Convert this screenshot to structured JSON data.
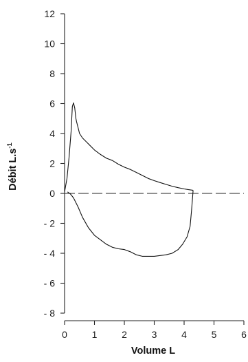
{
  "chart_data": {
    "type": "line",
    "xlabel": "Volume L",
    "ylabel_main": "Débit L.s",
    "ylabel_sup": "-1",
    "xlim": [
      0,
      6
    ],
    "ylim": [
      -8,
      12
    ],
    "xticks": [
      0,
      1,
      2,
      3,
      4,
      5,
      6
    ],
    "yticks": [
      12,
      10,
      8,
      6,
      4,
      2,
      0,
      -2,
      -4,
      -6,
      -8
    ],
    "ytick_labels": [
      "12",
      "10",
      "8",
      "6",
      "4",
      "2",
      "0",
      "- 2",
      "- 4",
      "- 6",
      "- 8"
    ],
    "zero_reference": {
      "y": 0,
      "style": "dashed"
    },
    "grid": false,
    "legend": "none",
    "series": [
      {
        "role": "expiratory",
        "x": [
          0,
          0.08,
          0.15,
          0.22,
          0.26,
          0.3,
          0.34,
          0.38,
          0.4,
          0.45,
          0.5,
          0.6,
          0.8,
          1.0,
          1.2,
          1.4,
          1.6,
          1.8,
          2.0,
          2.2,
          2.4,
          2.6,
          2.8,
          3.0,
          3.2,
          3.4,
          3.6,
          3.8,
          4.0,
          4.15,
          4.25,
          4.3
        ],
        "y": [
          0.1,
          1.0,
          2.4,
          4.2,
          5.8,
          6.05,
          5.7,
          5.0,
          4.8,
          4.4,
          4.0,
          3.7,
          3.3,
          2.9,
          2.6,
          2.35,
          2.2,
          1.95,
          1.75,
          1.6,
          1.4,
          1.2,
          1.0,
          0.85,
          0.72,
          0.6,
          0.48,
          0.38,
          0.3,
          0.25,
          0.22,
          0.2
        ]
      },
      {
        "role": "inspiratory",
        "x": [
          4.3,
          4.25,
          4.2,
          4.1,
          3.95,
          3.8,
          3.6,
          3.4,
          3.2,
          3.0,
          2.8,
          2.6,
          2.4,
          2.2,
          2.0,
          1.8,
          1.6,
          1.4,
          1.2,
          1.0,
          0.8,
          0.6,
          0.45,
          0.3,
          0.2,
          0.1
        ],
        "y": [
          0.2,
          -1.1,
          -2.2,
          -2.9,
          -3.4,
          -3.75,
          -4.0,
          -4.1,
          -4.15,
          -4.2,
          -4.2,
          -4.2,
          -4.1,
          -3.9,
          -3.75,
          -3.7,
          -3.6,
          -3.4,
          -3.1,
          -2.8,
          -2.3,
          -1.6,
          -0.9,
          -0.3,
          -0.05,
          0.1
        ]
      }
    ]
  }
}
